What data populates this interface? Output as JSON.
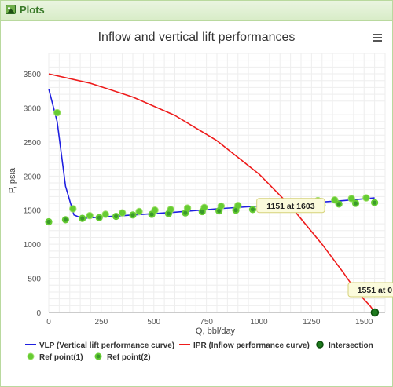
{
  "panel": {
    "title": "Plots",
    "icon": "image-icon"
  },
  "menu_icon": "hamburger-menu-icon",
  "chart_data": {
    "type": "line",
    "title": "Inflow and vertical lift performances",
    "xlabel": "Q, bbl/day",
    "ylabel": "P, psia",
    "xlim": [
      0,
      1600
    ],
    "ylim": [
      0,
      3800
    ],
    "xticks": [
      "0",
      "250",
      "500",
      "750",
      "1000",
      "1250",
      "1500"
    ],
    "yticks": [
      "0",
      "500",
      "1000",
      "1500",
      "2000",
      "2500",
      "3000",
      "3500"
    ],
    "grid": true,
    "legend_position": "bottom",
    "series": [
      {
        "name": "VLP (Vertical lift performance curve)",
        "kind": "line",
        "color": "#1f1fe0",
        "x": [
          0,
          40,
          80,
          120,
          160,
          250,
          400,
          600,
          800,
          1000,
          1200,
          1400,
          1550
        ],
        "y": [
          3280,
          2800,
          1850,
          1430,
          1380,
          1400,
          1430,
          1470,
          1520,
          1560,
          1600,
          1640,
          1680
        ]
      },
      {
        "name": "IPR (Inflow performance curve)",
        "kind": "line",
        "color": "#ee1b1b",
        "x": [
          0,
          200,
          400,
          600,
          800,
          1000,
          1150,
          1300,
          1400,
          1450,
          1500,
          1530,
          1551
        ],
        "y": [
          3500,
          3360,
          3160,
          2890,
          2520,
          2030,
          1560,
          1000,
          590,
          370,
          190,
          90,
          0
        ]
      },
      {
        "name": "Intersection",
        "kind": "marker",
        "color": "#1e7a1e",
        "points": [
          [
            1151,
            1603
          ],
          [
            1551,
            0
          ]
        ]
      },
      {
        "name": "Ref point(1)",
        "kind": "marker",
        "color": "#66cc33",
        "points": [
          [
            40,
            2930
          ],
          [
            115,
            1520
          ],
          [
            195,
            1420
          ],
          [
            270,
            1440
          ],
          [
            350,
            1460
          ],
          [
            430,
            1480
          ],
          [
            505,
            1500
          ],
          [
            580,
            1510
          ],
          [
            660,
            1530
          ],
          [
            740,
            1540
          ],
          [
            820,
            1560
          ],
          [
            900,
            1570
          ],
          [
            1040,
            1600
          ],
          [
            1200,
            1620
          ],
          [
            1280,
            1640
          ],
          [
            1360,
            1650
          ],
          [
            1440,
            1670
          ],
          [
            1510,
            1680
          ]
        ]
      },
      {
        "name": "Ref point(2)",
        "kind": "marker",
        "color": "#3a9a2a",
        "points": [
          [
            0,
            1330
          ],
          [
            80,
            1360
          ],
          [
            160,
            1380
          ],
          [
            240,
            1390
          ],
          [
            320,
            1410
          ],
          [
            400,
            1430
          ],
          [
            490,
            1440
          ],
          [
            570,
            1450
          ],
          [
            650,
            1460
          ],
          [
            730,
            1480
          ],
          [
            810,
            1490
          ],
          [
            890,
            1500
          ],
          [
            970,
            1510
          ],
          [
            1060,
            1530
          ],
          [
            1140,
            1540
          ],
          [
            1220,
            1560
          ],
          [
            1300,
            1570
          ],
          [
            1380,
            1590
          ],
          [
            1460,
            1600
          ],
          [
            1550,
            1610
          ]
        ]
      }
    ],
    "tooltips": [
      {
        "text": "1151 at 1603",
        "x": 1151,
        "y": 1603
      },
      {
        "text": "1551 at 0",
        "x": 1551,
        "y": 0
      }
    ]
  }
}
